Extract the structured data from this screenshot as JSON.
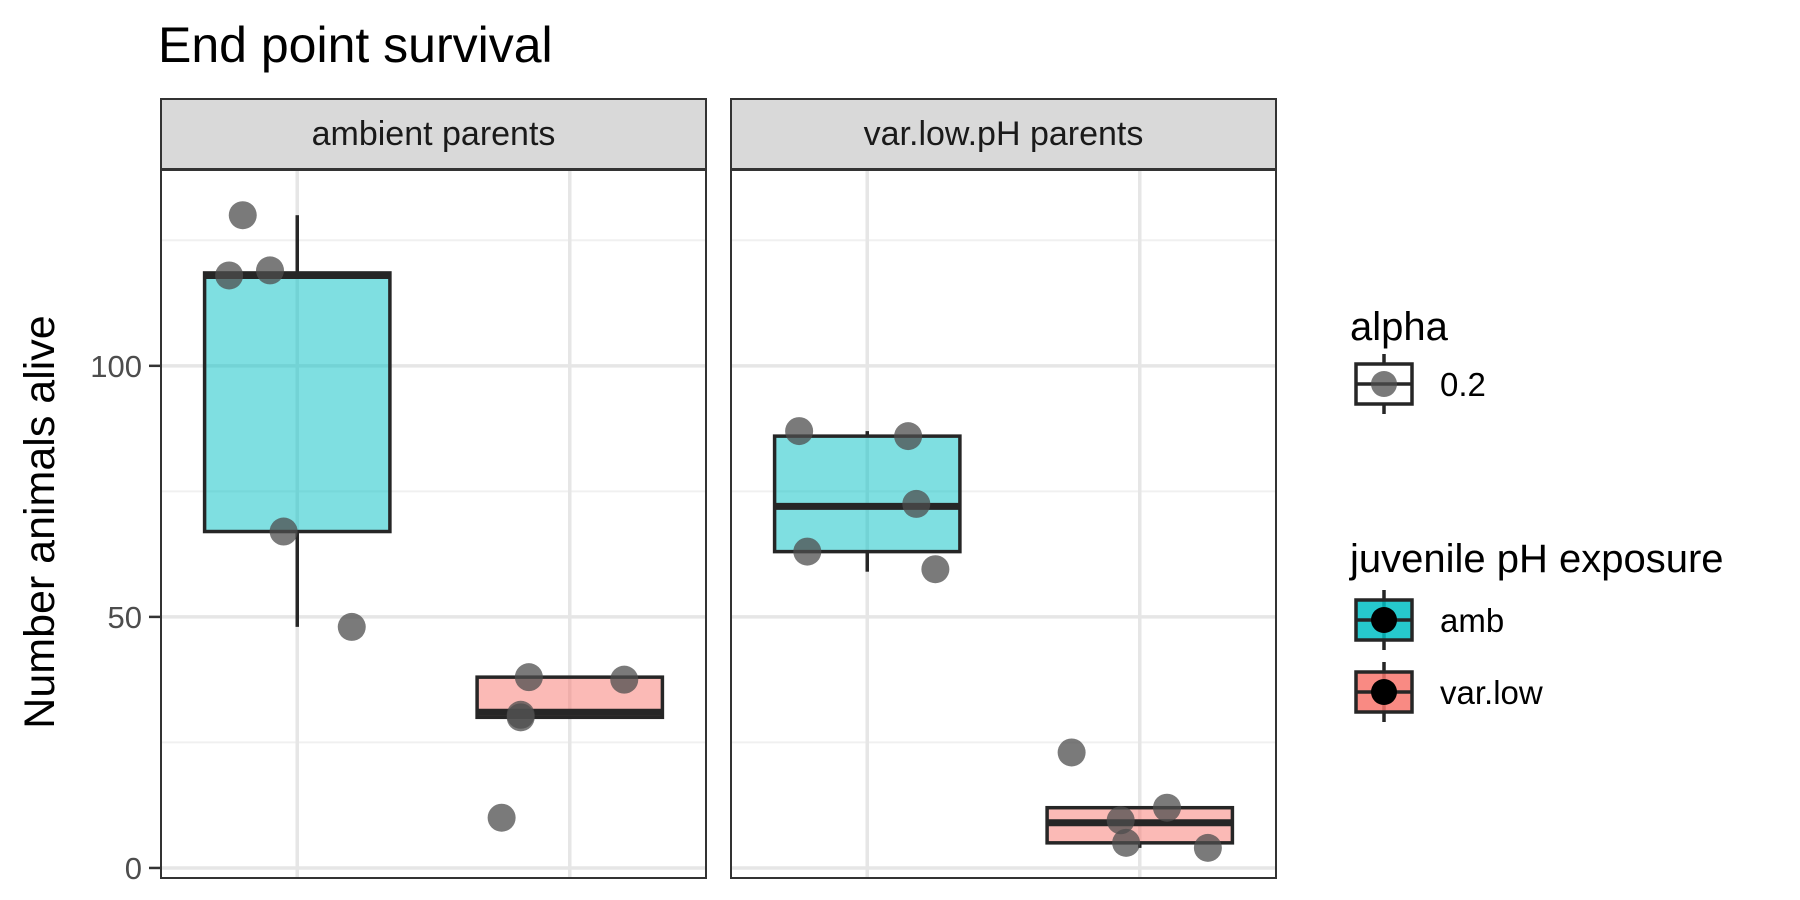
{
  "chart_data": {
    "type": "box",
    "title": "End point survival",
    "ylabel": "Number animals alive",
    "xlabel": "",
    "ylim": [
      -2,
      139
    ],
    "y_ticks": [
      0,
      50,
      100
    ],
    "y_ticks_minor": [
      25,
      75,
      125
    ],
    "grid": true,
    "legend_position": "right",
    "groups": [
      "amb",
      "var.low"
    ],
    "colors": {
      "amb": "#00BFC4",
      "var.low": "#F8766D",
      "point": "#4d4d4d",
      "box_line": "#262626",
      "strip_fill": "#d9d9d9"
    },
    "facets": [
      {
        "label": "ambient parents",
        "boxes": [
          {
            "group": "amb",
            "lower_whisker": 48,
            "q1": 67,
            "median": 118,
            "q3": 118.5,
            "upper_whisker": 130,
            "points": [
              {
                "x": -0.2,
                "y": 130
              },
              {
                "x": -0.25,
                "y": 118
              },
              {
                "x": -0.1,
                "y": 119
              },
              {
                "x": -0.05,
                "y": 67
              },
              {
                "x": 0.2,
                "y": 48
              }
            ]
          },
          {
            "group": "var.low",
            "lower_whisker": 30,
            "q1": 30,
            "median": 31,
            "q3": 38,
            "upper_whisker": 38,
            "points": [
              {
                "x": -0.15,
                "y": 38
              },
              {
                "x": 0.2,
                "y": 37.5
              },
              {
                "x": -0.18,
                "y": 30.5
              },
              {
                "x": -0.18,
                "y": 30
              },
              {
                "x": -0.25,
                "y": 10
              }
            ]
          }
        ]
      },
      {
        "label": "var.low.pH parents",
        "boxes": [
          {
            "group": "amb",
            "lower_whisker": 59,
            "q1": 63,
            "median": 72,
            "q3": 86,
            "upper_whisker": 87,
            "points": [
              {
                "x": -0.25,
                "y": 87
              },
              {
                "x": 0.15,
                "y": 86
              },
              {
                "x": 0.18,
                "y": 72.5
              },
              {
                "x": -0.22,
                "y": 63
              },
              {
                "x": 0.25,
                "y": 59.5
              }
            ]
          },
          {
            "group": "var.low",
            "lower_whisker": 4,
            "q1": 5,
            "median": 9,
            "q3": 12,
            "upper_whisker": 12,
            "points": [
              {
                "x": -0.25,
                "y": 23
              },
              {
                "x": 0.1,
                "y": 12
              },
              {
                "x": -0.07,
                "y": 9.5
              },
              {
                "x": -0.05,
                "y": 5
              },
              {
                "x": 0.25,
                "y": 4
              }
            ]
          }
        ]
      }
    ],
    "legends": [
      {
        "title": "alpha",
        "entries": [
          {
            "label": "0.2",
            "fill": "#ffffff"
          }
        ]
      },
      {
        "title": "juvenile pH exposure",
        "entries": [
          {
            "label": "amb",
            "fill": "#00BFC4"
          },
          {
            "label": "var.low",
            "fill": "#F8766D"
          }
        ]
      }
    ]
  }
}
